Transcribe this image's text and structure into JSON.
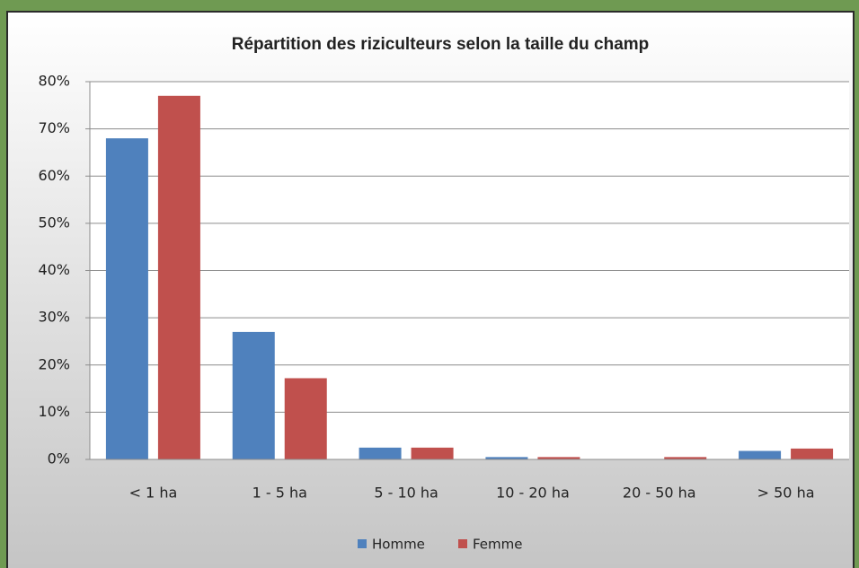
{
  "chart_data": {
    "type": "bar",
    "title": "Répartition des riziculteurs selon la taille du champ",
    "categories": [
      "< 1 ha",
      "1 - 5 ha",
      "5 - 10 ha",
      "10 - 20 ha",
      "20 - 50 ha",
      "> 50 ha"
    ],
    "series": [
      {
        "name": "Homme",
        "color": "#4f81bd",
        "values": [
          68,
          27,
          2.5,
          0.5,
          0,
          1.8
        ]
      },
      {
        "name": "Femme",
        "color": "#c0504d",
        "values": [
          77,
          17.2,
          2.5,
          0.5,
          0.5,
          2.3
        ]
      }
    ],
    "ylim": [
      0,
      80
    ],
    "yticks": [
      {
        "value": 0,
        "label": "0%"
      },
      {
        "value": 10,
        "label": "10%"
      },
      {
        "value": 20,
        "label": "20%"
      },
      {
        "value": 30,
        "label": "30%"
      },
      {
        "value": 40,
        "label": "40%"
      },
      {
        "value": 50,
        "label": "50%"
      },
      {
        "value": 60,
        "label": "60%"
      },
      {
        "value": 70,
        "label": "70%"
      },
      {
        "value": 80,
        "label": "80%"
      }
    ],
    "grid": true,
    "legend": "bottom"
  }
}
